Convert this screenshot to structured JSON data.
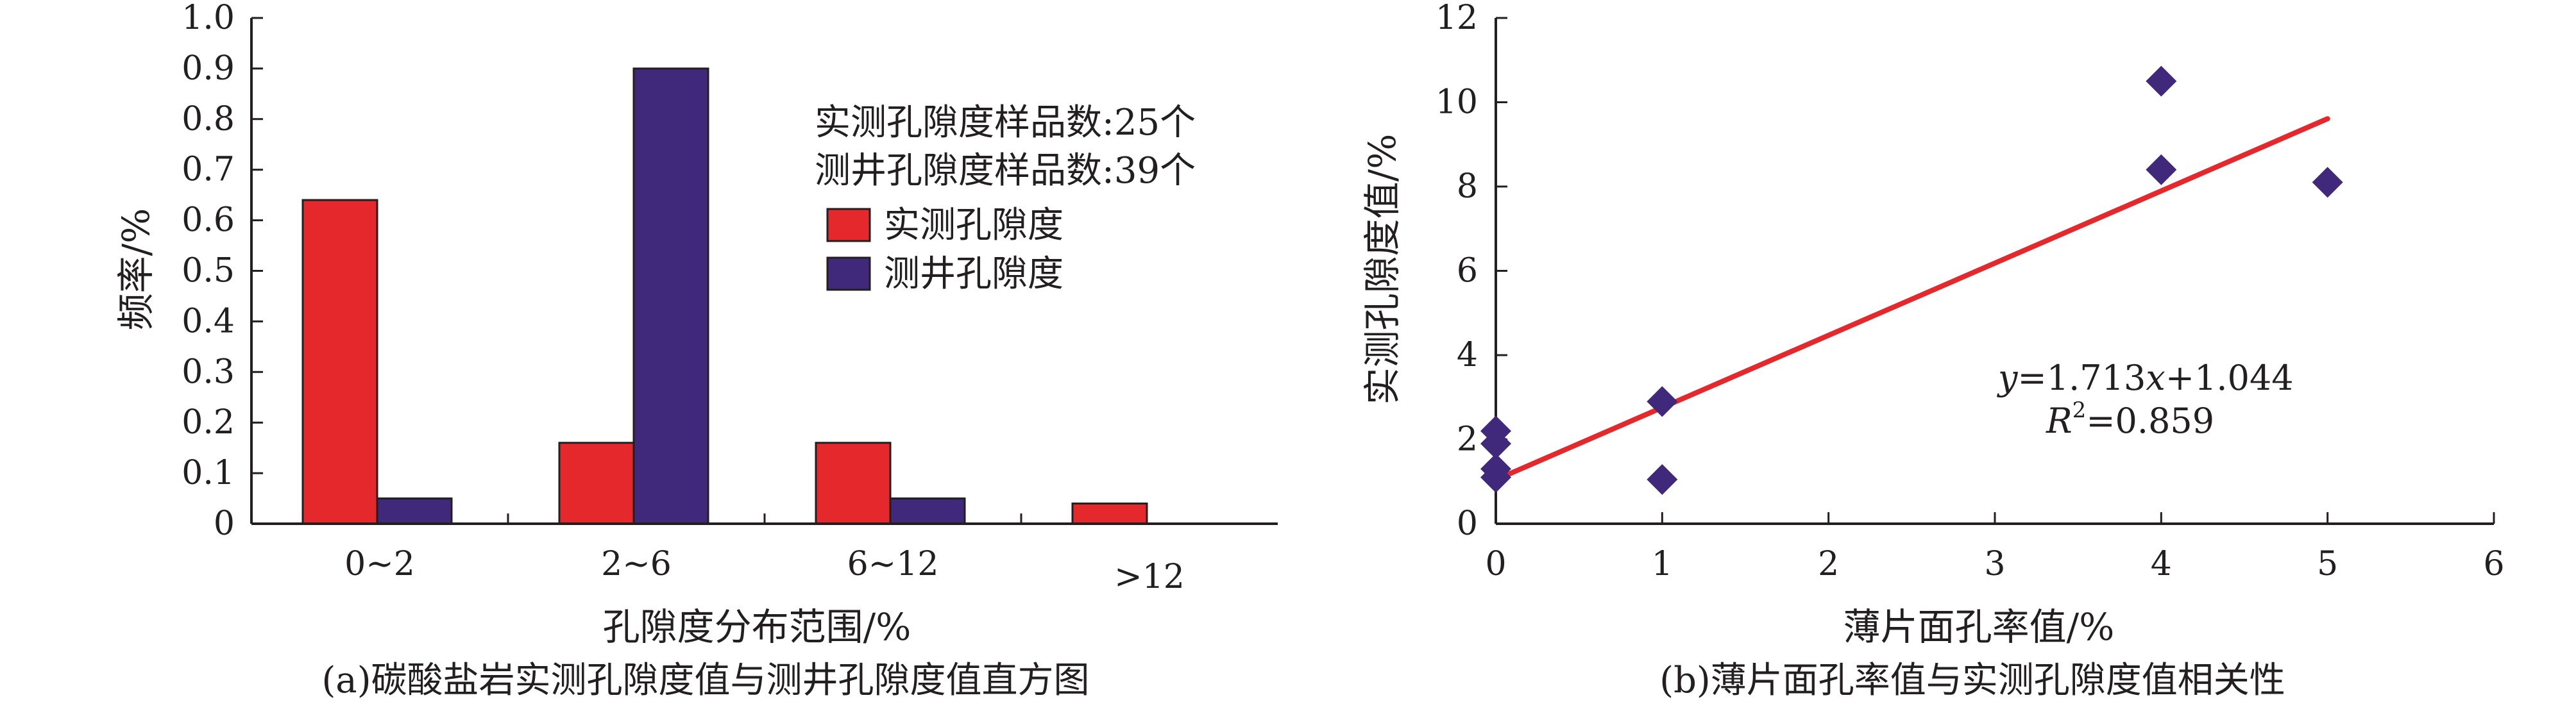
{
  "charts": [
    {
      "id": "a",
      "caption": "(a)碳酸盐岩实测孔隙度值与测井孔隙度值直方图",
      "chart_data": {
        "type": "bar",
        "categories": [
          "0~2",
          "2~6",
          "6~12",
          ">12"
        ],
        "series": [
          {
            "name": "实测孔隙度",
            "values": [
              0.64,
              0.16,
              0.16,
              0.04
            ],
            "color": "#e4282b"
          },
          {
            "name": "测井孔隙度",
            "values": [
              0.05,
              0.9,
              0.05,
              0.0
            ],
            "color": "#40287a"
          }
        ],
        "xlabel": "孔隙度分布范围/%",
        "ylabel": "频率/%",
        "ylim": [
          0,
          1.0
        ],
        "yticks": [
          "0",
          "0.1",
          "0.2",
          "0.3",
          "0.4",
          "0.5",
          "0.6",
          "0.7",
          "0.8",
          "0.9",
          "1.0"
        ],
        "grid": false,
        "legend_position": "top-right",
        "annotations": [
          "实测孔隙度样品数:25个",
          "测井孔隙度样品数:39个"
        ]
      }
    },
    {
      "id": "b",
      "caption": "(b)薄片面孔率值与实测孔隙度值相关性",
      "chart_data": {
        "type": "scatter",
        "series": [
          {
            "points": [
              [
                0,
                2.2
              ],
              [
                0,
                1.9
              ],
              [
                0,
                1.3
              ],
              [
                0,
                1.1
              ],
              [
                1,
                2.9
              ],
              [
                1,
                1.05
              ],
              [
                4,
                10.5
              ],
              [
                4,
                8.4
              ],
              [
                5,
                8.1
              ]
            ],
            "marker": "diamond",
            "color": "#40287a"
          }
        ],
        "trendline": {
          "x": [
            0,
            5
          ],
          "slope": 1.713,
          "intercept": 1.044,
          "color": "#e4282b"
        },
        "equation": {
          "y": "y",
          "eq": "=1.713",
          "x": "x",
          "rest": "+1.044",
          "r": "R",
          "sup": "2",
          "r_eq": "=0.859"
        },
        "xlabel": "薄片面孔率值/%",
        "ylabel": "实测孔隙度值/%",
        "xlim": [
          0,
          6
        ],
        "ylim": [
          0,
          12
        ],
        "xticks": [
          0,
          1,
          2,
          3,
          4,
          5,
          6
        ],
        "yticks": [
          0,
          2,
          4,
          6,
          8,
          10,
          12
        ],
        "grid": false
      }
    }
  ]
}
